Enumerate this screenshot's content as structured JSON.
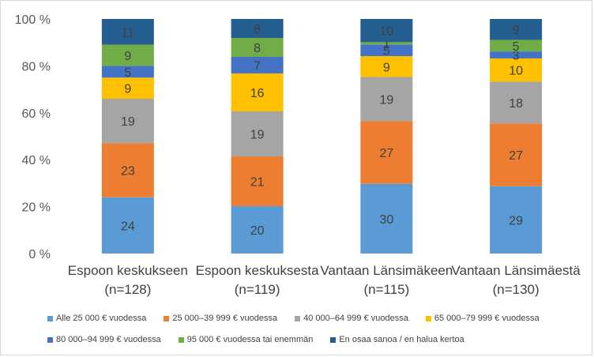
{
  "chart_data": {
    "type": "stacked-bar-100",
    "title": "",
    "xlabel": "",
    "ylabel": "",
    "ylim": [
      0,
      100
    ],
    "y_ticks": [
      "0 %",
      "20 %",
      "40 %",
      "60 %",
      "80 %",
      "100 %"
    ],
    "categories": [
      {
        "line1": "Espoon keskukseen",
        "line2": "(n=128)"
      },
      {
        "line1": "Espoon keskuksesta",
        "line2": "(n=119)"
      },
      {
        "line1": "Vantaan Länsimäkeen",
        "line2": "(n=115)"
      },
      {
        "line1": "Vantaan Länsimäestä",
        "line2": "(n=130)"
      }
    ],
    "series": [
      {
        "name": "Alle 25 000 € vuodessa",
        "color": "#5B9BD5",
        "values": [
          24,
          20,
          30,
          29
        ]
      },
      {
        "name": "25 000–39 999 € vuodessa",
        "color": "#ED7D31",
        "values": [
          23,
          21,
          27,
          27
        ]
      },
      {
        "name": "40 000–64 999 € vuodessa",
        "color": "#A5A5A5",
        "values": [
          19,
          19,
          19,
          18
        ]
      },
      {
        "name": "65 000–79 999 € vuodessa",
        "color": "#FFC000",
        "values": [
          9,
          16,
          9,
          10
        ]
      },
      {
        "name": "80 000–94 999 € vuodessa",
        "color": "#4472C4",
        "values": [
          5,
          7,
          5,
          3
        ]
      },
      {
        "name": "95 000 € vuodessa tai enemmän",
        "color": "#70AD47",
        "values": [
          9,
          8,
          1,
          5
        ]
      },
      {
        "name": "En osaa sanoa / en halua kertoa",
        "color": "#255E91",
        "values": [
          11,
          8,
          10,
          9
        ]
      }
    ],
    "legend_position": "bottom"
  }
}
